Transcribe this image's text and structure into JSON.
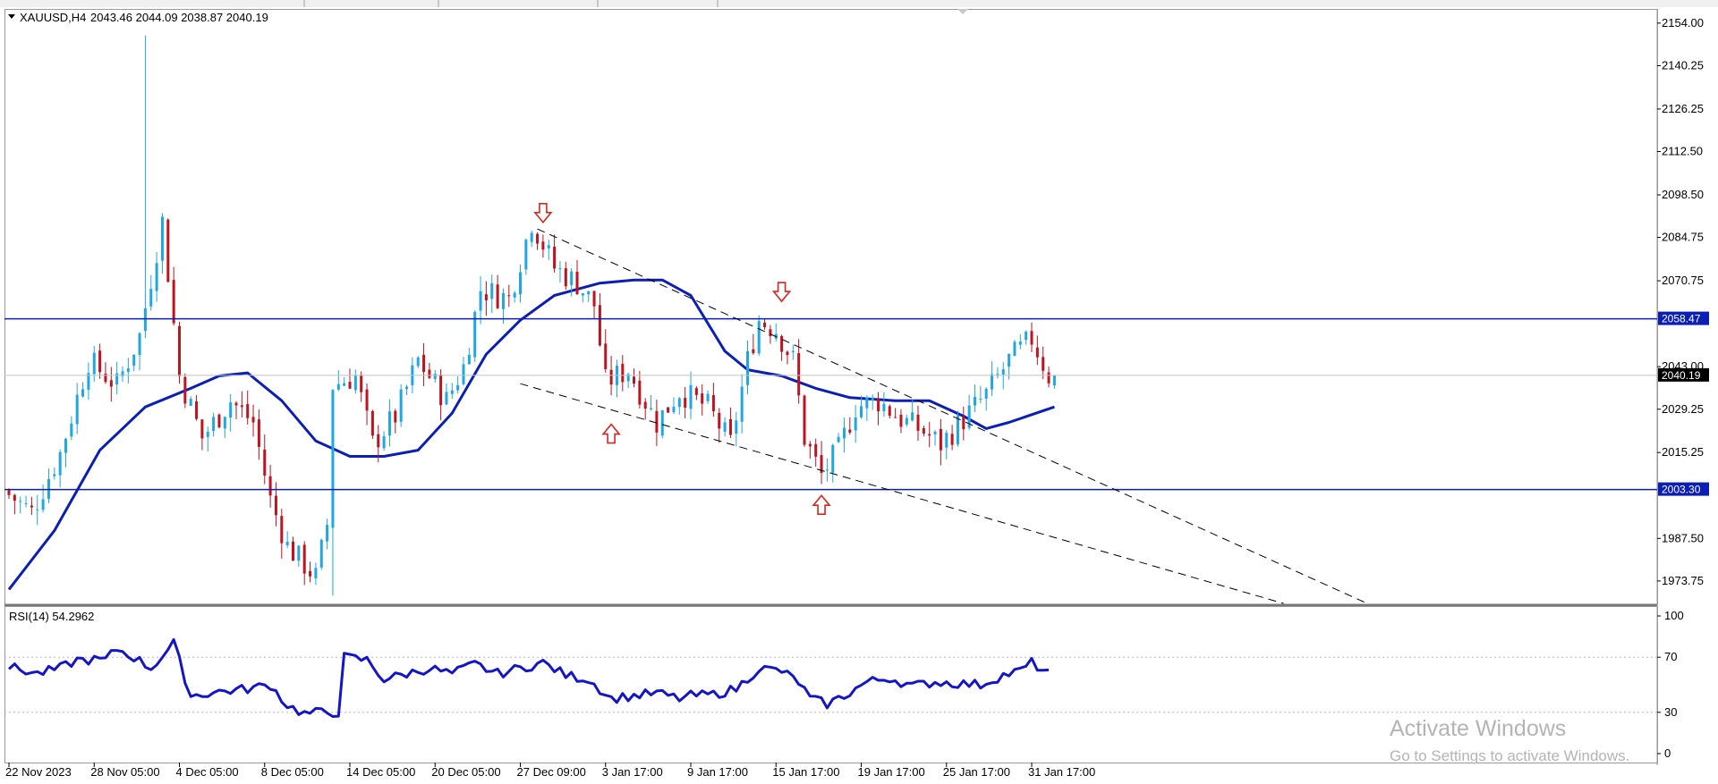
{
  "header": {
    "symbol": "XAUUSD,H4",
    "ohlc": "2043.46 2044.09 2038.87 2040.19"
  },
  "rsi_header": "RSI(14) 54.2962",
  "watermark": {
    "title": "Activate Windows",
    "subtitle": "Go to Settings to activate Windows."
  },
  "colors": {
    "bull": "#1EA7E1",
    "bear": "#C1121F",
    "ma": "#0B1FB5",
    "level": "#0B1FB5",
    "rsi": "#1515C8",
    "arrow": "#D4271F",
    "current": "#000000"
  },
  "chart_data": [
    {
      "type": "candlestick",
      "symbol": "XAUUSD",
      "timeframe": "H4",
      "ylim": [
        1966.5,
        2158.0
      ],
      "y_ticks": [
        "2154.00",
        "2140.25",
        "2126.25",
        "2112.50",
        "2098.50",
        "2084.75",
        "2070.75",
        "2043.00",
        "2029.25",
        "2015.25",
        "1987.50",
        "1973.75"
      ],
      "x_ticks": [
        "22 Nov 2023",
        "28 Nov 05:00",
        "4 Dec 05:00",
        "8 Dec 05:00",
        "14 Dec 05:00",
        "20 Dec 05:00",
        "27 Dec 09:00",
        "3 Jan 17:00",
        "9 Jan 17:00",
        "15 Jan 17:00",
        "19 Jan 17:00",
        "25 Jan 17:00",
        "31 Jan 17:00"
      ],
      "x_tick_bars": [
        0,
        15,
        30,
        45,
        60,
        75,
        90,
        105,
        120,
        135,
        150,
        165,
        180
      ],
      "bar_count": 250,
      "price_path": [
        [
          0,
          2003
        ],
        [
          5,
          1996
        ],
        [
          10,
          2015
        ],
        [
          15,
          2045
        ],
        [
          20,
          2037
        ],
        [
          24,
          2053
        ],
        [
          28,
          2090
        ],
        [
          31,
          2040
        ],
        [
          35,
          2020
        ],
        [
          40,
          2032
        ],
        [
          44,
          2025
        ],
        [
          47,
          2000
        ],
        [
          50,
          1985
        ],
        [
          55,
          1975
        ],
        [
          57,
          1992
        ],
        [
          58,
          2037
        ],
        [
          62,
          2040
        ],
        [
          65,
          2018
        ],
        [
          69,
          2027
        ],
        [
          73,
          2045
        ],
        [
          78,
          2032
        ],
        [
          81,
          2043
        ],
        [
          84,
          2068
        ],
        [
          89,
          2065
        ],
        [
          93,
          2090
        ],
        [
          97,
          2075
        ],
        [
          101,
          2070
        ],
        [
          104,
          2063
        ],
        [
          106,
          2038
        ],
        [
          110,
          2042
        ],
        [
          115,
          2025
        ],
        [
          119,
          2035
        ],
        [
          124,
          2030
        ],
        [
          128,
          2018
        ],
        [
          131,
          2045
        ],
        [
          133,
          2058
        ],
        [
          136,
          2055
        ],
        [
          139,
          2045
        ],
        [
          141,
          2020
        ],
        [
          144,
          2008
        ],
        [
          147,
          2016
        ],
        [
          150,
          2030
        ],
        [
          154,
          2032
        ],
        [
          158,
          2026
        ],
        [
          162,
          2022
        ],
        [
          165,
          2018
        ],
        [
          169,
          2026
        ],
        [
          173,
          2034
        ],
        [
          177,
          2045
        ],
        [
          181,
          2052
        ],
        [
          184,
          2040
        ]
      ],
      "last_price": 2040.19,
      "moving_average_path": [
        [
          0,
          1971
        ],
        [
          8,
          1990
        ],
        [
          16,
          2016
        ],
        [
          24,
          2030
        ],
        [
          32,
          2036
        ],
        [
          37,
          2040
        ],
        [
          42,
          2041
        ],
        [
          48,
          2032
        ],
        [
          54,
          2019
        ],
        [
          60,
          2014
        ],
        [
          66,
          2014
        ],
        [
          72,
          2016
        ],
        [
          78,
          2028
        ],
        [
          84,
          2047
        ],
        [
          90,
          2058
        ],
        [
          96,
          2066
        ],
        [
          104,
          2070
        ],
        [
          110,
          2071
        ],
        [
          115,
          2071
        ],
        [
          120,
          2066
        ],
        [
          126,
          2048
        ],
        [
          130,
          2042
        ],
        [
          136,
          2040
        ],
        [
          142,
          2036
        ],
        [
          148,
          2033
        ],
        [
          156,
          2032
        ],
        [
          162,
          2032
        ],
        [
          168,
          2027
        ],
        [
          172,
          2023
        ],
        [
          176,
          2025
        ],
        [
          184,
          2030
        ]
      ],
      "horizontal_levels": [
        {
          "label": "2058.47",
          "value": 2058.47
        },
        {
          "label": "2003.30",
          "value": 2003.3
        }
      ],
      "current_price_label": "2040.19",
      "trendlines": [
        {
          "from": [
            93,
            2087.5
          ],
          "to": [
            265,
            1945.0
          ],
          "style": "dashed"
        },
        {
          "from": [
            90,
            2037.5
          ],
          "to": [
            265,
            1945.0
          ],
          "style": "dashed"
        }
      ],
      "arrows": [
        {
          "direction": "down",
          "bar": 94,
          "price": 2092.5
        },
        {
          "direction": "up",
          "bar": 106,
          "price": 2021.5
        },
        {
          "direction": "down",
          "bar": 136,
          "price": 2067.0
        },
        {
          "direction": "up",
          "bar": 143,
          "price": 1998.5
        }
      ]
    },
    {
      "type": "line",
      "name": "RSI(14)",
      "value": 54.2962,
      "ylim": [
        0,
        100
      ],
      "y_ticks": [
        "100",
        "70",
        "30",
        "0"
      ],
      "levels": [
        70,
        30
      ],
      "path": [
        [
          0,
          63
        ],
        [
          5,
          58
        ],
        [
          9,
          62
        ],
        [
          12,
          68
        ],
        [
          17,
          68
        ],
        [
          19,
          76
        ],
        [
          22,
          70
        ],
        [
          25,
          62
        ],
        [
          29,
          80
        ],
        [
          32,
          42
        ],
        [
          37,
          45
        ],
        [
          42,
          47
        ],
        [
          46,
          50
        ],
        [
          49,
          35
        ],
        [
          52,
          29
        ],
        [
          55,
          30
        ],
        [
          58,
          30
        ],
        [
          59,
          70
        ],
        [
          63,
          68
        ],
        [
          66,
          54
        ],
        [
          70,
          58
        ],
        [
          74,
          62
        ],
        [
          78,
          58
        ],
        [
          82,
          65
        ],
        [
          86,
          58
        ],
        [
          90,
          62
        ],
        [
          94,
          66
        ],
        [
          98,
          57
        ],
        [
          102,
          54
        ],
        [
          106,
          40
        ],
        [
          110,
          42
        ],
        [
          114,
          44
        ],
        [
          118,
          40
        ],
        [
          120,
          42
        ],
        [
          124,
          43
        ],
        [
          128,
          47
        ],
        [
          132,
          62
        ],
        [
          136,
          60
        ],
        [
          139,
          52
        ],
        [
          141,
          40
        ],
        [
          144,
          36
        ],
        [
          147,
          42
        ],
        [
          151,
          52
        ],
        [
          155,
          55
        ],
        [
          159,
          49
        ],
        [
          163,
          52
        ],
        [
          167,
          51
        ],
        [
          171,
          50
        ],
        [
          175,
          57
        ],
        [
          178,
          60
        ],
        [
          180,
          66
        ],
        [
          183,
          58
        ]
      ]
    }
  ]
}
